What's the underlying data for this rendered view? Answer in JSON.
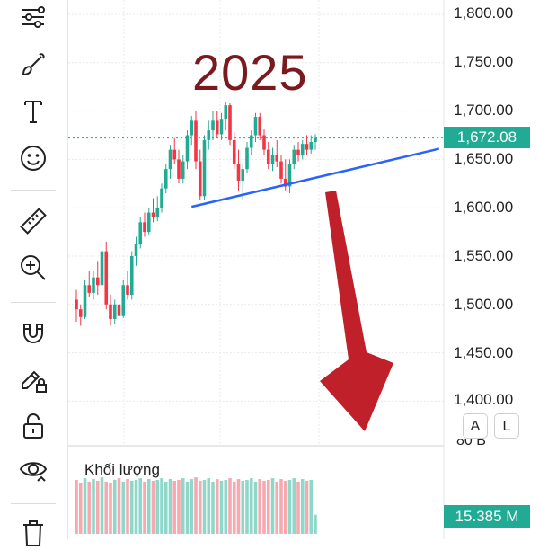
{
  "annotation": {
    "year_text": "2025",
    "year_color": "#7a1a1f",
    "arrow_color": "#c0202a",
    "trendline_color": "#2962ff"
  },
  "toolbar": {
    "tools": [
      {
        "name": "trend-lines-tool-icon"
      },
      {
        "name": "brush-tool-icon"
      },
      {
        "name": "text-tool-icon"
      },
      {
        "name": "emoji-tool-icon"
      },
      {
        "name": "ruler-tool-icon"
      },
      {
        "name": "zoom-in-tool-icon"
      },
      {
        "name": "magnet-tool-icon"
      },
      {
        "name": "lock-drawings-icon"
      },
      {
        "name": "unlock-icon"
      },
      {
        "name": "visibility-icon"
      },
      {
        "name": "trash-icon"
      }
    ]
  },
  "price_scale": {
    "labels": [
      "1,800.00",
      "1,750.00",
      "1,700.00",
      "1,650.00",
      "1,600.00",
      "1,550.00",
      "1,500.00",
      "1,450.00",
      "1,400.00"
    ],
    "last_price": "1,672.08",
    "last_price_color": "#22ab94",
    "auto_button": "A",
    "log_button": "L"
  },
  "volume": {
    "title": "Khối lượng",
    "scale_label": "80 B",
    "last_value": "15.385 M"
  },
  "chart_data": {
    "type": "candlestick",
    "title": "",
    "ylim": [
      1380,
      1820
    ],
    "y_ticks": [
      1400,
      1450,
      1500,
      1550,
      1600,
      1650,
      1700,
      1750,
      1800
    ],
    "last_price": 1672.08,
    "up_color": "#22ab94",
    "down_color": "#f23645",
    "candles": [
      [
        1505,
        1515,
        1482,
        1495
      ],
      [
        1495,
        1500,
        1478,
        1487
      ],
      [
        1487,
        1525,
        1485,
        1520
      ],
      [
        1520,
        1535,
        1508,
        1512
      ],
      [
        1512,
        1535,
        1505,
        1528
      ],
      [
        1528,
        1545,
        1510,
        1520
      ],
      [
        1520,
        1565,
        1515,
        1555
      ],
      [
        1555,
        1565,
        1495,
        1500
      ],
      [
        1500,
        1510,
        1478,
        1485
      ],
      [
        1485,
        1505,
        1480,
        1500
      ],
      [
        1500,
        1515,
        1482,
        1488
      ],
      [
        1488,
        1525,
        1486,
        1520
      ],
      [
        1520,
        1535,
        1505,
        1510
      ],
      [
        1510,
        1555,
        1505,
        1550
      ],
      [
        1550,
        1570,
        1540,
        1562
      ],
      [
        1562,
        1590,
        1558,
        1585
      ],
      [
        1585,
        1595,
        1570,
        1575
      ],
      [
        1575,
        1600,
        1572,
        1595
      ],
      [
        1595,
        1610,
        1585,
        1590
      ],
      [
        1590,
        1612,
        1586,
        1600
      ],
      [
        1600,
        1625,
        1595,
        1620
      ],
      [
        1620,
        1645,
        1615,
        1640
      ],
      [
        1640,
        1665,
        1630,
        1660
      ],
      [
        1660,
        1672,
        1645,
        1650
      ],
      [
        1650,
        1660,
        1625,
        1630
      ],
      [
        1630,
        1655,
        1625,
        1648
      ],
      [
        1648,
        1680,
        1640,
        1675
      ],
      [
        1675,
        1695,
        1665,
        1690
      ],
      [
        1690,
        1700,
        1640,
        1648
      ],
      [
        1648,
        1660,
        1608,
        1612
      ],
      [
        1612,
        1675,
        1608,
        1670
      ],
      [
        1670,
        1690,
        1660,
        1680
      ],
      [
        1680,
        1700,
        1670,
        1690
      ],
      [
        1690,
        1700,
        1672,
        1676
      ],
      [
        1676,
        1698,
        1670,
        1692
      ],
      [
        1692,
        1710,
        1680,
        1706
      ],
      [
        1706,
        1708,
        1665,
        1670
      ],
      [
        1670,
        1678,
        1640,
        1645
      ],
      [
        1645,
        1660,
        1618,
        1628
      ],
      [
        1628,
        1645,
        1608,
        1640
      ],
      [
        1640,
        1668,
        1636,
        1662
      ],
      [
        1662,
        1680,
        1655,
        1675
      ],
      [
        1675,
        1698,
        1668,
        1694
      ],
      [
        1694,
        1698,
        1670,
        1675
      ],
      [
        1675,
        1682,
        1655,
        1660
      ],
      [
        1660,
        1668,
        1640,
        1645
      ],
      [
        1645,
        1662,
        1638,
        1655
      ],
      [
        1655,
        1670,
        1642,
        1648
      ],
      [
        1648,
        1655,
        1625,
        1630
      ],
      [
        1630,
        1650,
        1618,
        1622
      ],
      [
        1622,
        1650,
        1615,
        1645
      ],
      [
        1645,
        1665,
        1640,
        1660
      ],
      [
        1660,
        1668,
        1648,
        1654
      ],
      [
        1654,
        1670,
        1650,
        1666
      ],
      [
        1666,
        1675,
        1655,
        1660
      ],
      [
        1660,
        1675,
        1656,
        1668
      ],
      [
        1668,
        1676,
        1660,
        1672
      ]
    ],
    "trendline": {
      "from": [
        27,
        1601
      ],
      "to": [
        85,
        1661
      ]
    },
    "volume": {
      "ylim": [
        0,
        80
      ],
      "values": [
        62,
        58,
        64,
        60,
        63,
        61,
        65,
        60,
        59,
        62,
        64,
        60,
        63,
        61,
        62,
        64,
        60,
        63,
        61,
        62,
        64,
        60,
        63,
        61,
        62,
        64,
        60,
        63,
        65,
        61,
        62,
        64,
        60,
        63,
        61,
        62,
        64,
        60,
        63,
        61,
        62,
        64,
        60,
        63,
        61,
        62,
        64,
        60,
        63,
        61,
        62,
        64,
        60,
        63,
        61,
        62,
        22
      ]
    }
  }
}
